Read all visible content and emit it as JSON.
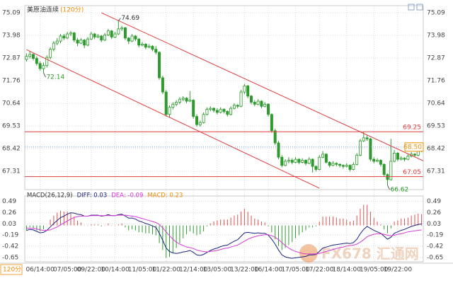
{
  "chart_data": [
    {
      "type": "candlestick",
      "title": "美原油连续",
      "subtitle": "(120分)",
      "interval_label": "120分",
      "watermark": "FX678 汇通网",
      "color": "#2e9a2e",
      "categories": [
        null,
        null,
        null,
        null,
        "06/14:00",
        null,
        null,
        null,
        null,
        null,
        null,
        null,
        "07/05:00",
        null,
        null,
        null,
        null,
        null,
        null,
        "09/22:00",
        null,
        null,
        null,
        null,
        null,
        null,
        "10/14:00",
        null,
        null,
        null,
        null,
        null,
        null,
        null,
        "11/05:00",
        null,
        null,
        null,
        null,
        null,
        null,
        "11/22:00",
        null,
        null,
        null,
        null,
        null,
        null,
        null,
        "12/14:00",
        null,
        null,
        null,
        null,
        null,
        null,
        "13/05:00",
        null,
        null,
        null,
        null,
        null,
        null,
        null,
        "13/22:00",
        null,
        null,
        null,
        null,
        null,
        null,
        "16/14:00",
        null,
        null,
        null,
        null,
        null,
        null,
        null,
        "17/05:00",
        null,
        null,
        null,
        null,
        null,
        null,
        "17/22:00",
        null,
        null,
        null,
        null,
        null,
        null,
        null,
        "18/14:00",
        null,
        null,
        null,
        null,
        null,
        null,
        null,
        "19/05:00",
        null,
        null,
        null,
        null,
        null,
        null,
        "19/22:00",
        null,
        null,
        null,
        null,
        null,
        null,
        null
      ],
      "ohlc": [
        [
          72.8,
          73.1,
          72.7,
          72.95
        ],
        [
          72.95,
          73.2,
          72.85,
          73.05
        ],
        [
          73.05,
          73.1,
          72.75,
          72.85
        ],
        [
          72.85,
          72.95,
          72.5,
          72.6
        ],
        [
          72.6,
          72.7,
          72.25,
          72.35
        ],
        [
          72.35,
          72.65,
          72.14,
          72.5
        ],
        [
          72.5,
          73.0,
          72.4,
          72.9
        ],
        [
          72.9,
          73.4,
          72.8,
          73.3
        ],
        [
          73.3,
          73.7,
          73.2,
          73.6
        ],
        [
          73.6,
          73.85,
          73.5,
          73.7
        ],
        [
          73.7,
          74.05,
          73.6,
          73.95
        ],
        [
          73.95,
          74.05,
          73.75,
          73.85
        ],
        [
          73.85,
          74.15,
          73.8,
          74.05
        ],
        [
          74.05,
          74.2,
          73.95,
          74.1
        ],
        [
          74.1,
          74.15,
          73.65,
          73.75
        ],
        [
          73.75,
          73.85,
          73.45,
          73.6
        ],
        [
          73.6,
          73.85,
          73.55,
          73.75
        ],
        [
          73.75,
          73.8,
          73.35,
          73.5
        ],
        [
          73.5,
          73.9,
          73.45,
          73.8
        ],
        [
          73.8,
          74.15,
          73.75,
          74.05
        ],
        [
          74.05,
          74.1,
          73.8,
          73.9
        ],
        [
          73.9,
          74.05,
          73.85,
          73.95
        ],
        [
          73.95,
          74.0,
          73.65,
          73.75
        ],
        [
          73.75,
          74.1,
          73.7,
          74.0
        ],
        [
          74.0,
          74.3,
          73.95,
          74.2
        ],
        [
          74.2,
          74.25,
          73.8,
          73.9
        ],
        [
          73.9,
          74.15,
          73.85,
          74.05
        ],
        [
          74.05,
          74.69,
          74.0,
          74.3
        ],
        [
          74.3,
          74.45,
          74.2,
          74.35
        ],
        [
          74.35,
          74.4,
          73.75,
          73.85
        ],
        [
          73.85,
          73.9,
          73.55,
          73.7
        ],
        [
          73.7,
          74.05,
          73.65,
          73.95
        ],
        [
          73.95,
          74.0,
          73.7,
          73.8
        ],
        [
          73.8,
          73.85,
          73.4,
          73.5
        ],
        [
          73.5,
          73.65,
          73.45,
          73.55
        ],
        [
          73.55,
          73.6,
          73.3,
          73.4
        ],
        [
          73.4,
          73.55,
          73.35,
          73.45
        ],
        [
          73.45,
          73.5,
          73.2,
          73.3
        ],
        [
          73.3,
          73.45,
          73.05,
          73.15
        ],
        [
          73.15,
          73.2,
          71.8,
          71.9
        ],
        [
          71.9,
          72.0,
          71.1,
          71.2
        ],
        [
          71.2,
          71.3,
          70.0,
          70.1
        ],
        [
          70.1,
          70.55,
          69.95,
          70.45
        ],
        [
          70.45,
          70.7,
          70.35,
          70.6
        ],
        [
          70.6,
          70.8,
          70.5,
          70.7
        ],
        [
          70.7,
          70.95,
          70.6,
          70.85
        ],
        [
          70.85,
          71.0,
          70.75,
          70.9
        ],
        [
          70.9,
          70.95,
          70.65,
          70.75
        ],
        [
          70.75,
          71.25,
          70.7,
          70.8
        ],
        [
          70.8,
          70.85,
          69.9,
          70.0
        ],
        [
          70.0,
          70.1,
          69.5,
          69.6
        ],
        [
          69.6,
          69.8,
          69.5,
          69.7
        ],
        [
          69.7,
          70.2,
          69.65,
          70.1
        ],
        [
          70.1,
          70.45,
          70.05,
          70.35
        ],
        [
          70.35,
          70.5,
          70.25,
          70.4
        ],
        [
          70.4,
          70.45,
          70.2,
          70.3
        ],
        [
          70.3,
          70.4,
          70.1,
          70.2
        ],
        [
          70.2,
          70.45,
          70.15,
          70.35
        ],
        [
          70.35,
          70.4,
          70.15,
          70.25
        ],
        [
          70.25,
          70.3,
          70.0,
          70.1
        ],
        [
          70.1,
          70.5,
          70.05,
          70.4
        ],
        [
          70.4,
          70.65,
          70.35,
          70.55
        ],
        [
          70.55,
          70.6,
          70.4,
          70.5
        ],
        [
          70.5,
          71.3,
          70.45,
          71.2
        ],
        [
          71.2,
          71.6,
          71.1,
          71.5
        ],
        [
          71.5,
          71.55,
          70.9,
          71.0
        ],
        [
          71.0,
          71.05,
          70.6,
          70.7
        ],
        [
          70.7,
          70.8,
          70.5,
          70.6
        ],
        [
          70.6,
          70.85,
          70.55,
          70.75
        ],
        [
          70.75,
          70.8,
          70.4,
          70.5
        ],
        [
          70.5,
          70.7,
          70.45,
          70.6
        ],
        [
          70.6,
          70.65,
          70.0,
          70.1
        ],
        [
          70.1,
          70.15,
          69.2,
          69.3
        ],
        [
          69.3,
          69.4,
          68.6,
          68.7
        ],
        [
          68.7,
          68.8,
          67.9,
          68.0
        ],
        [
          68.0,
          68.1,
          67.5,
          67.6
        ],
        [
          67.6,
          67.9,
          67.55,
          67.8
        ],
        [
          67.8,
          68.0,
          67.7,
          67.85
        ],
        [
          67.85,
          67.95,
          67.65,
          67.75
        ],
        [
          67.75,
          68.0,
          67.7,
          67.9
        ],
        [
          67.9,
          67.95,
          67.65,
          67.75
        ],
        [
          67.75,
          67.95,
          67.7,
          67.85
        ],
        [
          67.85,
          67.9,
          67.6,
          67.7
        ],
        [
          67.7,
          68.0,
          67.65,
          67.9
        ],
        [
          67.9,
          67.95,
          67.25,
          67.55
        ],
        [
          67.55,
          67.6,
          67.3,
          67.4
        ],
        [
          67.4,
          68.1,
          67.35,
          68.0
        ],
        [
          68.0,
          68.3,
          67.95,
          68.15
        ],
        [
          68.15,
          68.2,
          67.7,
          67.75
        ],
        [
          67.75,
          67.8,
          67.5,
          67.6
        ],
        [
          67.6,
          67.8,
          67.55,
          67.7
        ],
        [
          67.7,
          67.75,
          67.55,
          67.65
        ],
        [
          67.65,
          67.7,
          67.5,
          67.6
        ],
        [
          67.6,
          67.65,
          67.45,
          67.55
        ],
        [
          67.55,
          67.7,
          67.5,
          67.6
        ],
        [
          67.6,
          67.65,
          67.3,
          67.4
        ],
        [
          67.4,
          67.75,
          67.35,
          67.65
        ],
        [
          67.65,
          68.2,
          67.6,
          68.1
        ],
        [
          68.1,
          68.9,
          68.05,
          68.8
        ],
        [
          68.8,
          69.25,
          68.75,
          68.95
        ],
        [
          68.95,
          69.1,
          68.8,
          68.9
        ],
        [
          68.9,
          68.95,
          67.8,
          67.9
        ],
        [
          67.9,
          68.0,
          67.7,
          67.8
        ],
        [
          67.8,
          67.95,
          67.75,
          67.85
        ],
        [
          67.85,
          67.9,
          67.55,
          67.65
        ],
        [
          67.65,
          67.7,
          67.05,
          67.15
        ],
        [
          67.15,
          67.2,
          66.62,
          66.9
        ],
        [
          66.9,
          68.9,
          66.85,
          67.8
        ],
        [
          67.8,
          68.35,
          67.75,
          68.2
        ],
        [
          68.2,
          68.25,
          67.8,
          67.9
        ],
        [
          67.9,
          68.05,
          67.85,
          67.95
        ],
        [
          67.95,
          68.0,
          67.8,
          67.9
        ],
        [
          67.9,
          68.15,
          67.85,
          68.05
        ],
        [
          68.05,
          68.25,
          68.0,
          68.15
        ],
        [
          68.15,
          68.2,
          68.0,
          68.1
        ],
        [
          68.1,
          68.4,
          68.05,
          68.3
        ],
        [
          68.3,
          68.6,
          68.25,
          68.5
        ]
      ],
      "ylim": [
        66.41,
        75.44
      ],
      "yticks": [
        75.09,
        73.98,
        72.87,
        71.76,
        70.64,
        69.53,
        68.42,
        67.31
      ],
      "grid": true,
      "annotations": [
        74.69,
        72.14,
        66.62
      ],
      "hlines": [
        {
          "value": 69.25,
          "color": "#e03c3c"
        },
        {
          "value": 67.05,
          "color": "#e03c3c"
        }
      ],
      "last_price": {
        "value": 68.5,
        "label": "68.50",
        "color": "#f08c00"
      },
      "trendlines": [
        {
          "x": [
            22,
            116.8
          ],
          "y": [
            75.09,
            67.8
          ],
          "color": "#e03c3c"
        },
        {
          "x": [
            0,
            86
          ],
          "y": [
            73.28,
            66.48
          ],
          "color": "#e03c3c"
        }
      ]
    },
    {
      "type": "macd",
      "labels": [
        {
          "text": "MACD(26,12,9)",
          "color": "#333333"
        },
        {
          "text": "DIFF: 0.03",
          "color": "#1a237e"
        },
        {
          "text": "DEA: -0.09",
          "color": "#d63bd6"
        },
        {
          "text": "MACD: 0.23",
          "color": "#f08c00"
        }
      ],
      "ylim": [
        -0.74,
        0.6
      ],
      "yticks": [
        0.49,
        0.26,
        0.03,
        -0.19,
        -0.42,
        -0.65
      ],
      "diff": {
        "color": "#1a237e",
        "values": [
          -0.1,
          -0.08,
          -0.09,
          -0.12,
          -0.15,
          -0.14,
          -0.1,
          -0.03,
          0.04,
          0.1,
          0.16,
          0.19,
          0.23,
          0.26,
          0.25,
          0.23,
          0.22,
          0.19,
          0.19,
          0.21,
          0.21,
          0.21,
          0.19,
          0.2,
          0.22,
          0.2,
          0.2,
          0.22,
          0.23,
          0.19,
          0.15,
          0.15,
          0.13,
          0.09,
          0.07,
          0.04,
          0.02,
          -0.01,
          -0.04,
          -0.16,
          -0.3,
          -0.46,
          -0.53,
          -0.56,
          -0.57,
          -0.56,
          -0.54,
          -0.53,
          -0.51,
          -0.55,
          -0.6,
          -0.61,
          -0.59,
          -0.55,
          -0.51,
          -0.48,
          -0.46,
          -0.43,
          -0.41,
          -0.4,
          -0.36,
          -0.32,
          -0.29,
          -0.22,
          -0.15,
          -0.14,
          -0.15,
          -0.16,
          -0.15,
          -0.16,
          -0.16,
          -0.2,
          -0.28,
          -0.38,
          -0.5,
          -0.6,
          -0.64,
          -0.66,
          -0.67,
          -0.66,
          -0.65,
          -0.64,
          -0.63,
          -0.6,
          -0.6,
          -0.59,
          -0.53,
          -0.46,
          -0.44,
          -0.42,
          -0.4,
          -0.39,
          -0.38,
          -0.37,
          -0.36,
          -0.37,
          -0.35,
          -0.28,
          -0.17,
          -0.08,
          -0.02,
          -0.06,
          -0.1,
          -0.13,
          -0.16,
          -0.22,
          -0.28,
          -0.24,
          -0.16,
          -0.13,
          -0.1,
          -0.08,
          -0.05,
          -0.02,
          0.0,
          0.02,
          0.03
        ]
      },
      "dea": {
        "color": "#d63bd6",
        "values": [
          -0.05,
          -0.06,
          -0.06,
          -0.07,
          -0.09,
          -0.1,
          -0.1,
          -0.09,
          -0.06,
          -0.03,
          0.01,
          0.05,
          0.09,
          0.13,
          0.16,
          0.18,
          0.19,
          0.19,
          0.19,
          0.2,
          0.2,
          0.2,
          0.2,
          0.2,
          0.2,
          0.2,
          0.2,
          0.21,
          0.21,
          0.21,
          0.2,
          0.19,
          0.18,
          0.16,
          0.14,
          0.12,
          0.1,
          0.08,
          0.06,
          0.02,
          -0.05,
          -0.13,
          -0.21,
          -0.28,
          -0.34,
          -0.38,
          -0.41,
          -0.44,
          -0.45,
          -0.47,
          -0.5,
          -0.52,
          -0.53,
          -0.54,
          -0.53,
          -0.52,
          -0.51,
          -0.49,
          -0.47,
          -0.46,
          -0.44,
          -0.42,
          -0.4,
          -0.36,
          -0.32,
          -0.28,
          -0.25,
          -0.23,
          -0.21,
          -0.2,
          -0.19,
          -0.19,
          -0.21,
          -0.24,
          -0.29,
          -0.35,
          -0.41,
          -0.46,
          -0.5,
          -0.53,
          -0.55,
          -0.57,
          -0.58,
          -0.58,
          -0.58,
          -0.58,
          -0.57,
          -0.55,
          -0.53,
          -0.51,
          -0.49,
          -0.47,
          -0.45,
          -0.44,
          -0.42,
          -0.41,
          -0.4,
          -0.38,
          -0.34,
          -0.29,
          -0.23,
          -0.2,
          -0.18,
          -0.17,
          -0.17,
          -0.18,
          -0.2,
          -0.21,
          -0.2,
          -0.18,
          -0.17,
          -0.15,
          -0.13,
          -0.12,
          -0.11,
          -0.1,
          -0.09
        ]
      },
      "hist": {
        "up_color": "#e05050",
        "down_color": "#2e9a2e",
        "values": [
          -0.1,
          -0.04,
          -0.06,
          -0.1,
          -0.12,
          -0.08,
          0.0,
          0.12,
          0.2,
          0.26,
          0.3,
          0.28,
          0.28,
          0.26,
          0.18,
          0.1,
          0.06,
          0.0,
          0.0,
          0.02,
          0.02,
          0.02,
          -0.02,
          0.0,
          0.04,
          0.0,
          0.0,
          0.02,
          0.04,
          -0.04,
          -0.1,
          -0.08,
          -0.1,
          -0.14,
          -0.14,
          -0.16,
          -0.16,
          -0.18,
          -0.2,
          -0.36,
          -0.5,
          -0.66,
          -0.64,
          -0.56,
          -0.46,
          -0.36,
          -0.26,
          -0.18,
          -0.12,
          -0.16,
          -0.2,
          -0.18,
          -0.12,
          -0.02,
          0.04,
          0.08,
          0.1,
          0.12,
          0.12,
          0.12,
          0.16,
          0.2,
          0.22,
          0.28,
          0.34,
          0.28,
          0.2,
          0.14,
          0.12,
          0.08,
          0.06,
          -0.02,
          -0.14,
          -0.28,
          -0.42,
          -0.5,
          -0.46,
          -0.4,
          -0.34,
          -0.26,
          -0.2,
          -0.14,
          -0.1,
          -0.04,
          -0.04,
          -0.02,
          0.08,
          0.18,
          0.18,
          0.18,
          0.18,
          0.16,
          0.14,
          0.14,
          0.12,
          0.08,
          0.1,
          0.2,
          0.34,
          0.42,
          0.42,
          0.28,
          0.16,
          0.08,
          0.02,
          -0.08,
          -0.16,
          -0.06,
          0.08,
          0.1,
          0.14,
          0.14,
          0.16,
          0.2,
          0.22,
          0.24,
          0.23
        ]
      }
    }
  ]
}
